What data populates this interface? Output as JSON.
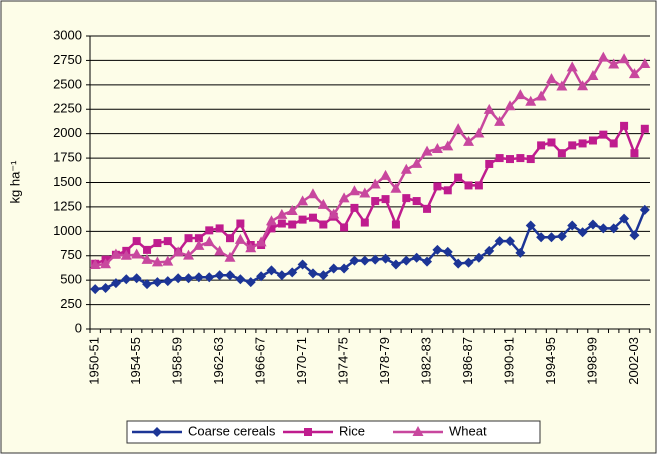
{
  "chart_data": {
    "type": "line",
    "y_label": "kg ha⁻¹",
    "categories": [
      "1950-51",
      null,
      null,
      null,
      "1954-55",
      null,
      null,
      null,
      "1958-59",
      null,
      null,
      null,
      "1962-63",
      null,
      null,
      null,
      "1966-67",
      null,
      null,
      null,
      "1970-71",
      null,
      null,
      null,
      "1974-75",
      null,
      null,
      null,
      "1978-79",
      null,
      null,
      null,
      "1982-83",
      null,
      null,
      null,
      "1986-87",
      null,
      null,
      null,
      "1990-91",
      null,
      null,
      null,
      "1994-95",
      null,
      null,
      null,
      "1998-99",
      null,
      null,
      null,
      "2002-03",
      null
    ],
    "series": [
      {
        "name": "Coarse cereals",
        "color": "#1c3596",
        "marker": "diamond",
        "values": [
          408,
          420,
          470,
          510,
          520,
          460,
          480,
          490,
          520,
          520,
          530,
          530,
          550,
          550,
          510,
          480,
          540,
          600,
          550,
          580,
          660,
          570,
          550,
          620,
          620,
          700,
          700,
          710,
          720,
          660,
          700,
          730,
          690,
          810,
          790,
          670,
          680,
          730,
          800,
          900,
          900,
          780,
          1060,
          940,
          940,
          950,
          1060,
          990,
          1070,
          1030,
          1030,
          1130,
          960,
          1220
        ]
      },
      {
        "name": "Rice",
        "color": "#bf1c8e",
        "marker": "square",
        "values": [
          668,
          710,
          760,
          800,
          900,
          810,
          880,
          900,
          790,
          930,
          930,
          1010,
          1030,
          930,
          1080,
          860,
          860,
          1030,
          1080,
          1070,
          1120,
          1140,
          1070,
          1150,
          1040,
          1240,
          1090,
          1310,
          1330,
          1070,
          1340,
          1310,
          1230,
          1460,
          1420,
          1550,
          1470,
          1470,
          1690,
          1750,
          1740,
          1750,
          1740,
          1880,
          1910,
          1800,
          1880,
          1900,
          1930,
          1990,
          1900,
          2080,
          1800,
          2050
        ]
      },
      {
        "name": "Wheat",
        "color": "#c8479e",
        "marker": "triangle",
        "values": [
          655,
          663,
          763,
          750,
          763,
          708,
          682,
          690,
          785,
          751,
          851,
          890,
          793,
          730,
          913,
          827,
          887,
          1103,
          1169,
          1208,
          1307,
          1380,
          1271,
          1172,
          1338,
          1410,
          1387,
          1480,
          1568,
          1436,
          1630,
          1691,
          1816,
          1843,
          1870,
          2046,
          1916,
          2002,
          2244,
          2121,
          2281,
          2394,
          2327,
          2380,
          2559,
          2483,
          2679,
          2485,
          2590,
          2778,
          2708,
          2762,
          2610,
          2713
        ]
      }
    ],
    "ylim": [
      0,
      3000
    ],
    "yticks": [
      0,
      250,
      500,
      750,
      1000,
      1250,
      1500,
      1750,
      2000,
      2250,
      2500,
      2750,
      3000
    ],
    "grid": true,
    "legend": "bottom"
  }
}
